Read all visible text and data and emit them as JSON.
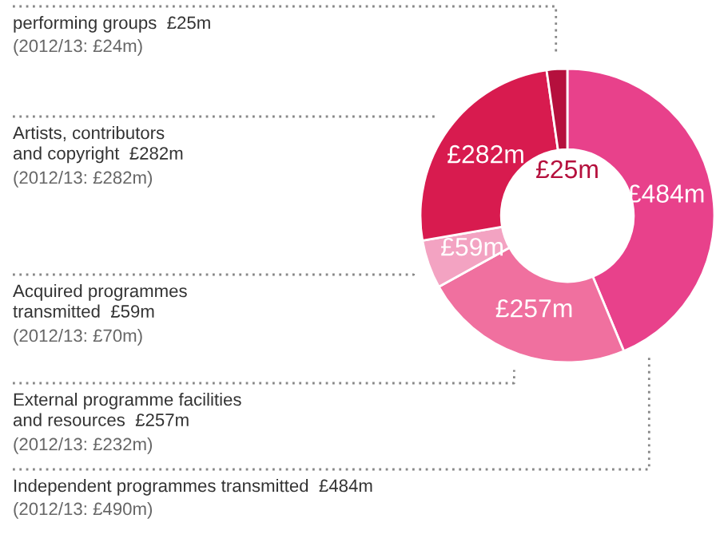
{
  "chart_data": {
    "type": "donut",
    "categories": [
      "Independent programmes transmitted  £484m",
      "External programme facilities\nand resources  £257m",
      "Acquired programmes\ntransmitted  £59m",
      "Artists, contributors\nand copyright  £282m",
      "performing groups  £25m"
    ],
    "values": [
      484,
      257,
      59,
      282,
      25
    ],
    "colors": [
      "#e8418b",
      "#f0709f",
      "#f3a3c2",
      "#d81b4f",
      "#b5103d"
    ],
    "value_labels": [
      "£484m",
      "£257m",
      "£59m",
      "£282m",
      "£25m"
    ],
    "annotations": [
      "(2012/13: £490m)",
      "(2012/13: £232m)",
      "(2012/13: £70m)",
      "(2012/13: £282m)",
      "(2012/13: £24m)"
    ],
    "legend": false
  }
}
